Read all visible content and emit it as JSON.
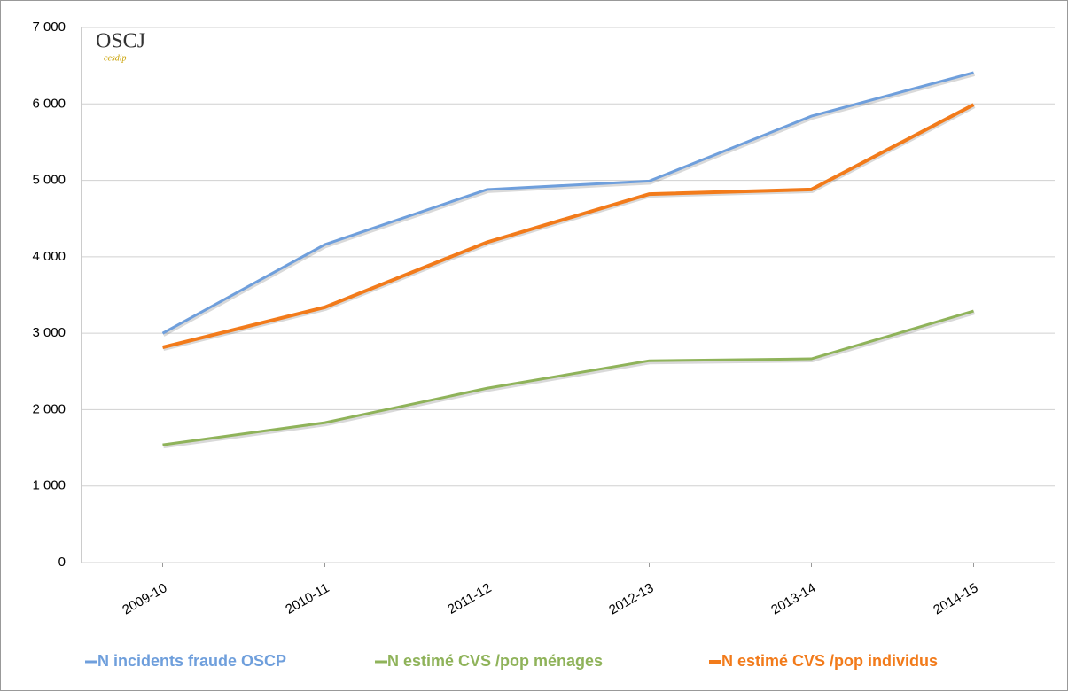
{
  "chart_data": {
    "type": "line",
    "logo": {
      "main": "OSCJ",
      "sub": "cesdip"
    },
    "categories": [
      "2009-10",
      "2010-11",
      "2011-12",
      "2012-13",
      "2013-14",
      "2014-15"
    ],
    "series": [
      {
        "name": "N incidents fraude OSCP",
        "color": "#6f9fdc",
        "values": [
          3000,
          4160,
          4880,
          4990,
          5840,
          6410
        ]
      },
      {
        "name": "N estimé CVS /pop ménages",
        "color": "#8fb35a",
        "values": [
          1540,
          1830,
          2280,
          2640,
          2665,
          3290
        ]
      },
      {
        "name": "N estimé CVS /pop individus",
        "color": "#f27b1b",
        "values": [
          2815,
          3340,
          4190,
          4820,
          4880,
          5990
        ]
      }
    ],
    "ylim": [
      0,
      7000
    ],
    "yticks": [
      0,
      {
        "value": 1000,
        "label": "1 000"
      },
      {
        "value": 2000,
        "label": "2 000"
      },
      {
        "value": 3000,
        "label": "3 000"
      },
      {
        "value": 4000,
        "label": "4 000"
      },
      {
        "value": 5000,
        "label": "5 000"
      },
      {
        "value": 6000,
        "label": "6 000"
      },
      {
        "value": 7000,
        "label": "7 000"
      }
    ],
    "grid": true,
    "legend": "bottom"
  }
}
